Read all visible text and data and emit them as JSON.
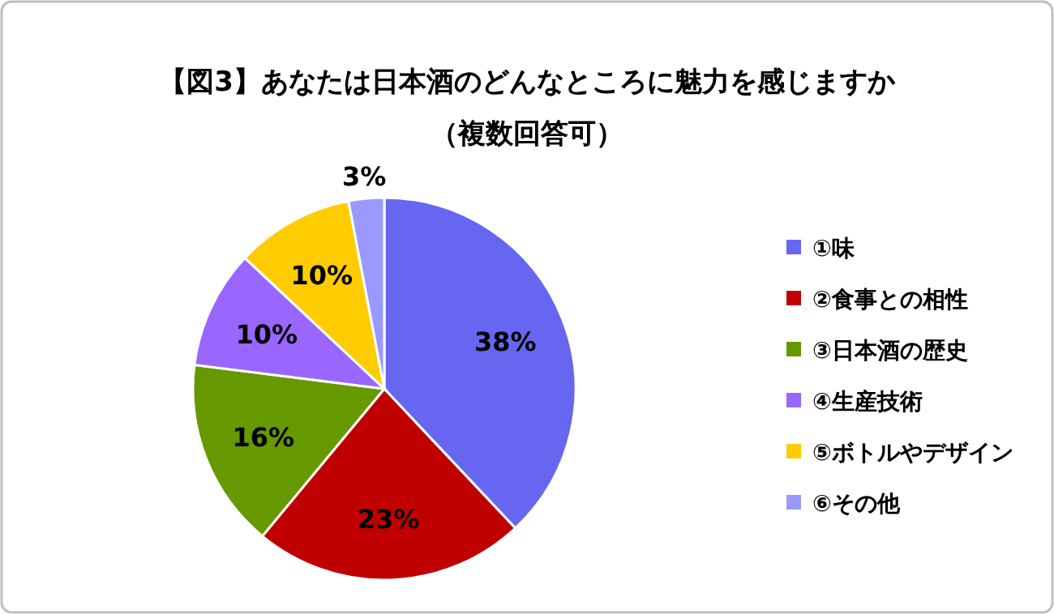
{
  "chart_data": {
    "type": "pie",
    "title": "【図3】あなたは日本酒のどんなところに魅力を感じますか",
    "subtitle": "（複数回答可）",
    "categories": [
      "①味",
      "②食事との相性",
      "③日本酒の歴史",
      "④生産技術",
      "⑤ボトルやデザイン",
      "⑥その他"
    ],
    "values": [
      38,
      23,
      16,
      10,
      10,
      3
    ],
    "value_labels": [
      "38%",
      "23%",
      "16%",
      "10%",
      "10%",
      "3%"
    ],
    "colors": [
      "#6666f0",
      "#c00000",
      "#669900",
      "#9966ff",
      "#ffcc00",
      "#9999ff"
    ],
    "legend": "right"
  }
}
